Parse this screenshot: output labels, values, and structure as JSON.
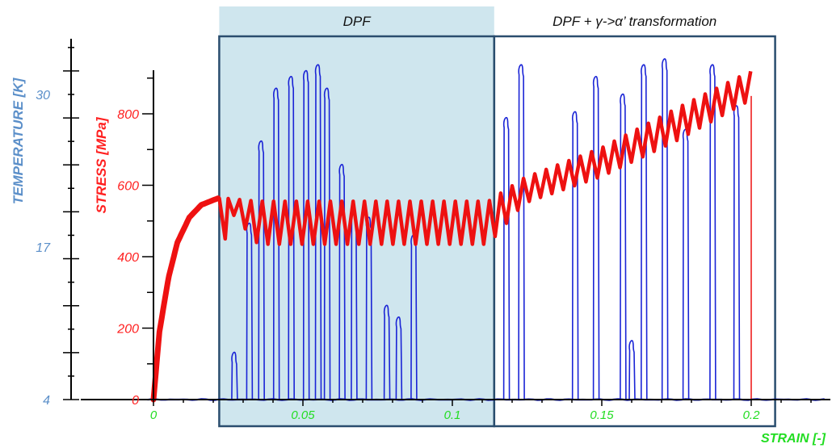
{
  "chart_data": {
    "type": "line",
    "regions": [
      {
        "label": "DPF",
        "x_range": [
          0.022,
          0.114
        ],
        "fill": "#cfe6ee"
      },
      {
        "label": "DPF + γ->α’ transformation",
        "x_range": [
          0.114,
          0.208
        ],
        "fill": "none"
      }
    ],
    "x_axis": {
      "label": "STRAIN [-]",
      "ticks": [
        "0",
        "0.05",
        "0.1",
        "0.15",
        "0.2"
      ],
      "tick_values": [
        0,
        0.05,
        0.1,
        0.15,
        0.2
      ],
      "range": [
        -0.002,
        0.225
      ],
      "color": "#22dd22"
    },
    "y_axes": [
      {
        "label": "STRESS [MPa]",
        "ticks": [
          "0",
          "200",
          "400",
          "600",
          "800"
        ],
        "tick_values": [
          0,
          200,
          400,
          600,
          800
        ],
        "range": [
          0,
          920
        ],
        "color": "#ff2020"
      },
      {
        "label": "TEMPERATURE [K]",
        "ticks": [
          "4",
          "17",
          "30"
        ],
        "tick_values": [
          4,
          17,
          30
        ],
        "range": [
          4,
          34
        ],
        "color": "#5b8fc9"
      }
    ],
    "series": [
      {
        "axis": "STRESS [MPa]",
        "color": "#ee1111",
        "style": "serrated",
        "points": [
          [
            0,
            0
          ],
          [
            0.002,
            190
          ],
          [
            0.005,
            340
          ],
          [
            0.008,
            440
          ],
          [
            0.012,
            510
          ],
          [
            0.016,
            545
          ],
          [
            0.022,
            565
          ],
          [
            0.035,
            495
          ],
          [
            0.06,
            495
          ],
          [
            0.09,
            495
          ],
          [
            0.112,
            495
          ],
          [
            0.124,
            585
          ],
          [
            0.15,
            665
          ],
          [
            0.175,
            770
          ],
          [
            0.2,
            880
          ],
          [
            0.2,
            0
          ]
        ],
        "oscillation_amplitude": [
          0,
          0,
          0,
          0,
          0,
          0,
          0,
          60,
          60,
          60,
          60,
          35,
          40,
          45,
          40,
          0
        ]
      },
      {
        "axis": "TEMPERATURE [K]",
        "color": "#1a24d6",
        "baseline": 4,
        "spikes": [
          {
            "x": 0.027,
            "peak": 8
          },
          {
            "x": 0.032,
            "peak": 19
          },
          {
            "x": 0.036,
            "peak": 26
          },
          {
            "x": 0.041,
            "peak": 30.5
          },
          {
            "x": 0.046,
            "peak": 31.5
          },
          {
            "x": 0.051,
            "peak": 32
          },
          {
            "x": 0.055,
            "peak": 32.5
          },
          {
            "x": 0.058,
            "peak": 30.5
          },
          {
            "x": 0.063,
            "peak": 24
          },
          {
            "x": 0.067,
            "peak": 20
          },
          {
            "x": 0.072,
            "peak": 19.5
          },
          {
            "x": 0.078,
            "peak": 12
          },
          {
            "x": 0.082,
            "peak": 11
          },
          {
            "x": 0.087,
            "peak": 18
          },
          {
            "x": 0.118,
            "peak": 28
          },
          {
            "x": 0.123,
            "peak": 32.5
          },
          {
            "x": 0.141,
            "peak": 28.5
          },
          {
            "x": 0.148,
            "peak": 31.5
          },
          {
            "x": 0.157,
            "peak": 30
          },
          {
            "x": 0.16,
            "peak": 9
          },
          {
            "x": 0.164,
            "peak": 32.5
          },
          {
            "x": 0.171,
            "peak": 33
          },
          {
            "x": 0.178,
            "peak": 27
          },
          {
            "x": 0.187,
            "peak": 32.5
          },
          {
            "x": 0.195,
            "peak": 29
          }
        ]
      }
    ]
  }
}
